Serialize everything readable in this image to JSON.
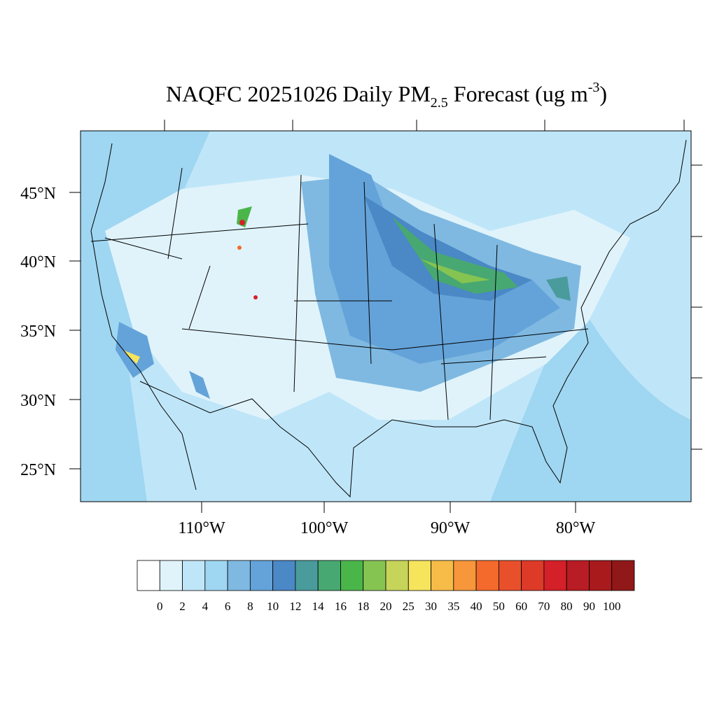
{
  "title": {
    "main": "NAQFC 20251026 Daily PM",
    "subscript": "2.5",
    "middle": " Forecast (ug m",
    "superscript": "-3",
    "end": ")"
  },
  "map": {
    "lat_labels": [
      "45°N",
      "40°N",
      "35°N",
      "30°N",
      "25°N"
    ],
    "lon_labels": [
      "110°W",
      "100°W",
      "90°W",
      "80°W"
    ]
  },
  "colorbar": {
    "labels": [
      0,
      2,
      4,
      6,
      8,
      10,
      12,
      14,
      16,
      18,
      20,
      25,
      30,
      35,
      40,
      50,
      60,
      70,
      80,
      90,
      100
    ],
    "colors": [
      "#ffffff",
      "#e0f3fb",
      "#bfe6f8",
      "#9fd6f2",
      "#7fb9e1",
      "#64a3d9",
      "#4a88c6",
      "#4a9c9c",
      "#48a872",
      "#4ab64a",
      "#86c452",
      "#c6d45a",
      "#f6e45c",
      "#f7bc48",
      "#f7963a",
      "#f36a2c",
      "#e8502c",
      "#de3a28",
      "#d42028",
      "#b81c24",
      "#a81a1c",
      "#901818"
    ]
  }
}
